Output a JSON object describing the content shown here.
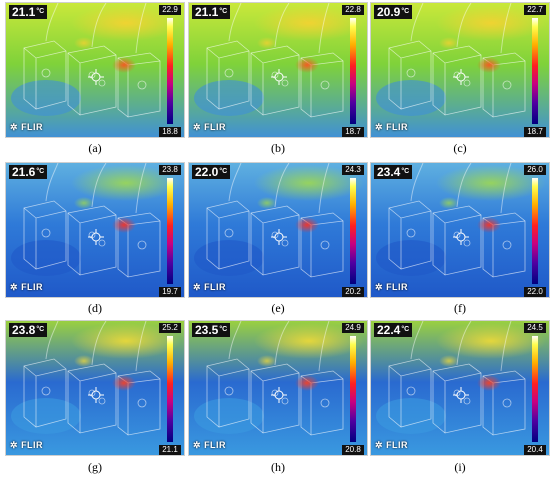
{
  "brand": "FLIR",
  "unit": "°C",
  "panels": [
    {
      "caption": "(a)",
      "spot": "21.1",
      "max": "22.9",
      "min": "18.8"
    },
    {
      "caption": "(b)",
      "spot": "21.1",
      "max": "22.8",
      "min": "18.7"
    },
    {
      "caption": "(c)",
      "spot": "20.9",
      "max": "22.7",
      "min": "18.7"
    },
    {
      "caption": "(d)",
      "spot": "21.6",
      "max": "23.8",
      "min": "19.7"
    },
    {
      "caption": "(e)",
      "spot": "22.0",
      "max": "24.3",
      "min": "20.2"
    },
    {
      "caption": "(f)",
      "spot": "23.4",
      "max": "26.0",
      "min": "22.0"
    },
    {
      "caption": "(g)",
      "spot": "23.8",
      "max": "25.2",
      "min": "21.1"
    },
    {
      "caption": "(h)",
      "spot": "23.5",
      "max": "24.9",
      "min": "20.8"
    },
    {
      "caption": "(i)",
      "spot": "22.4",
      "max": "24.5",
      "min": "20.4"
    }
  ]
}
